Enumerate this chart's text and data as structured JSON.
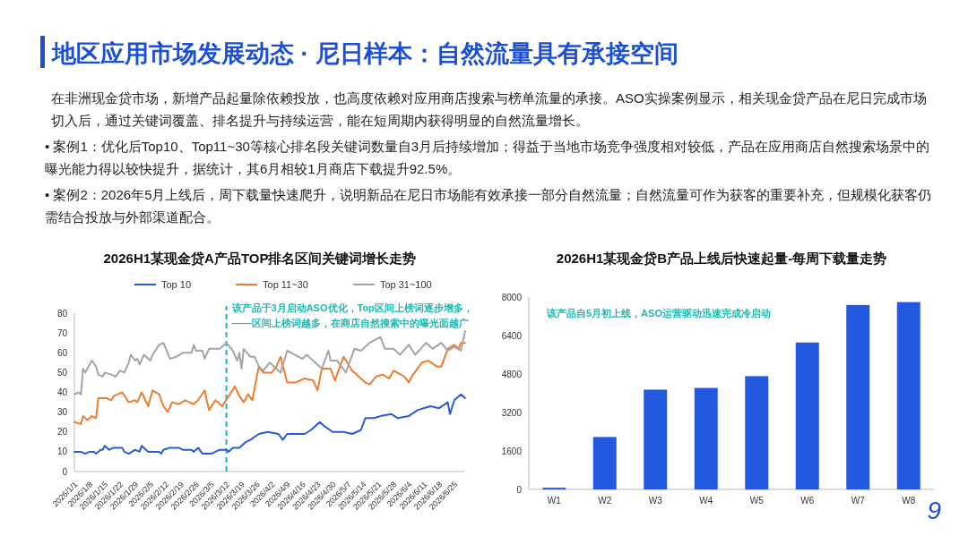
{
  "chart_data": [
    {
      "type": "other",
      "title": "地区应用市场发展动态 · 尼日样本：自然流量具有承接空间",
      "annotations": [
        "在非洲现金贷市场，新增产品起量除依赖投放，也高度依赖对应用商店搜索与榜单流量的承接。ASO实操案例显示，相关现金贷产品在尼日完成市场切入后，通过关键词覆盖、排名提升与持续运营，能在短周期内获得明显的自然流量增长。",
        "• 案例1：优化后Top10、Top11~30等核心排名段关键词数量自3月后持续增加；得益于当地市场竞争强度相对较低，产品在应用商店自然搜索场景中的曝光能力得以较快提升，据统计，其6月相较1月商店下载提升92.5%。",
        "• 案例2：2026年5月上线后，周下载量快速爬升，说明新品在尼日市场能有效承接一部分自然流量；自然流量可作为获客的重要补充，但规模化获客仍需结合投放与外部渠道配合。",
        "9"
      ]
    },
    {
      "type": "line",
      "title": "2026H1某现金贷A产品TOP排名区间关键词增长走势",
      "legend": "top",
      "xlim": [
        "2026-01-01",
        "2026-06-30"
      ],
      "ylim": [
        0,
        80
      ],
      "yticks": [
        0,
        10,
        20,
        30,
        40,
        50,
        60,
        70,
        80
      ],
      "xticks": [
        {
          "value": "2026-01-01",
          "label": "2026/1/1"
        },
        {
          "value": "2026-01-08",
          "label": "2026/1/8"
        },
        {
          "value": "2026-01-15",
          "label": "2026/1/15"
        },
        {
          "value": "2026-01-22",
          "label": "2026/1/22"
        },
        {
          "value": "2026-01-29",
          "label": "2026/1/29"
        },
        {
          "value": "2026-02-05",
          "label": "2026/2/5"
        },
        {
          "value": "2026-02-12",
          "label": "2026/2/12"
        },
        {
          "value": "2026-02-19",
          "label": "2026/2/19"
        },
        {
          "value": "2026-02-26",
          "label": "2026/2/26"
        },
        {
          "value": "2026-03-05",
          "label": "2026/3/5"
        },
        {
          "value": "2026-03-12",
          "label": "2026/3/12"
        },
        {
          "value": "2026-03-19",
          "label": "2026/3/19"
        },
        {
          "value": "2026-03-26",
          "label": "2026/3/26"
        },
        {
          "value": "2026-04-02",
          "label": "2026/4/2"
        },
        {
          "value": "2026-04-09",
          "label": "2026/4/9"
        },
        {
          "value": "2026-04-16",
          "label": "2026/4/16"
        },
        {
          "value": "2026-04-23",
          "label": "2026/4/23"
        },
        {
          "value": "2026-04-30",
          "label": "2026/4/30"
        },
        {
          "value": "2026-05-07",
          "label": "2026/5/7"
        },
        {
          "value": "2026-05-14",
          "label": "2026/5/14"
        },
        {
          "value": "2026-05-21",
          "label": "2026/5/21"
        },
        {
          "value": "2026-05-28",
          "label": "2026/5/28"
        },
        {
          "value": "2026-06-04",
          "label": "2026/6/4"
        },
        {
          "value": "2026-06-11",
          "label": "2026/6/11"
        },
        {
          "value": "2026-06-18",
          "label": "2026/6/18"
        },
        {
          "value": "2026-06-25",
          "label": "2026/6/25"
        }
      ],
      "ref_lines": [
        {
          "axis": "x",
          "value": "2026-03-12",
          "label": "该产品于3月启动ASO优化，Top区间上榜词逐步增多，——区间上榜词越多，在商店自然搜索中的曝光面越广",
          "color": "#1fb8b0",
          "line_style": "dashed"
        }
      ],
      "series": [
        {
          "name": "Top 10",
          "color": "#2a5bd7",
          "x": [
            "2026-01-01",
            "2026-01-04",
            "2026-01-06",
            "2026-01-08",
            "2026-01-10",
            "2026-01-11",
            "2026-01-13",
            "2026-01-14",
            "2026-01-15",
            "2026-01-17",
            "2026-01-19",
            "2026-01-23",
            "2026-01-24",
            "2026-01-26",
            "2026-01-29",
            "2026-01-31",
            "2026-02-01",
            "2026-02-03",
            "2026-02-04",
            "2026-02-09",
            "2026-02-10",
            "2026-02-11",
            "2026-02-14",
            "2026-02-18",
            "2026-02-20",
            "2026-02-24",
            "2026-02-25",
            "2026-02-27",
            "2026-03-01",
            "2026-03-05",
            "2026-03-07",
            "2026-03-09",
            "2026-03-12",
            "2026-03-13",
            "2026-03-15",
            "2026-03-18",
            "2026-03-21",
            "2026-03-23",
            "2026-03-27",
            "2026-03-31",
            "2026-04-05",
            "2026-04-07",
            "2026-04-09",
            "2026-04-17",
            "2026-04-20",
            "2026-04-24",
            "2026-04-26",
            "2026-04-30",
            "2026-05-05",
            "2026-05-09",
            "2026-05-13",
            "2026-05-15",
            "2026-05-19",
            "2026-05-22",
            "2026-05-27",
            "2026-05-30",
            "2026-06-04",
            "2026-06-08",
            "2026-06-14",
            "2026-06-18",
            "2026-06-22",
            "2026-06-23",
            "2026-06-25",
            "2026-06-28",
            "2026-06-30"
          ],
          "values": [
            10,
            10,
            9,
            10,
            10,
            9,
            11,
            11,
            13,
            11,
            12,
            12,
            10,
            9,
            11,
            10,
            13,
            11,
            10,
            10,
            9,
            11,
            12,
            12,
            11,
            11,
            10,
            12,
            9,
            9,
            10,
            11,
            11,
            10,
            12,
            12,
            15,
            16,
            19,
            20,
            19,
            16,
            19,
            19,
            21,
            25,
            23,
            20,
            20,
            19,
            21,
            27,
            27,
            28,
            29,
            27,
            28,
            31,
            33,
            32,
            35,
            29,
            36,
            39,
            37
          ]
        },
        {
          "name": "Top 11~30",
          "color": "#ed7d31",
          "x": [
            "2026-01-01",
            "2026-01-04",
            "2026-01-05",
            "2026-01-07",
            "2026-01-09",
            "2026-01-11",
            "2026-01-12",
            "2026-01-16",
            "2026-01-18",
            "2026-01-19",
            "2026-01-21",
            "2026-01-23",
            "2026-01-26",
            "2026-01-29",
            "2026-01-30",
            "2026-02-01",
            "2026-02-04",
            "2026-02-06",
            "2026-02-09",
            "2026-02-11",
            "2026-02-13",
            "2026-02-15",
            "2026-02-18",
            "2026-02-21",
            "2026-02-25",
            "2026-02-27",
            "2026-03-02",
            "2026-03-04",
            "2026-03-07",
            "2026-03-10",
            "2026-03-13",
            "2026-03-16",
            "2026-03-18",
            "2026-03-20",
            "2026-03-22",
            "2026-03-24",
            "2026-03-26",
            "2026-03-27",
            "2026-03-29",
            "2026-04-02",
            "2026-04-04",
            "2026-04-06",
            "2026-04-09",
            "2026-04-13",
            "2026-04-17",
            "2026-04-21",
            "2026-04-23",
            "2026-04-25",
            "2026-04-29",
            "2026-05-01",
            "2026-05-05",
            "2026-05-09",
            "2026-05-15",
            "2026-05-17",
            "2026-05-20",
            "2026-05-23",
            "2026-05-26",
            "2026-05-28",
            "2026-06-02",
            "2026-06-04",
            "2026-06-06",
            "2026-06-10",
            "2026-06-13",
            "2026-06-17",
            "2026-06-19",
            "2026-06-22",
            "2026-06-25",
            "2026-06-27",
            "2026-06-28",
            "2026-06-30"
          ],
          "values": [
            25,
            24,
            28,
            26,
            28,
            27,
            37,
            37,
            36,
            38,
            39,
            40,
            35,
            36,
            35,
            40,
            33,
            41,
            39,
            33,
            30,
            35,
            34,
            36,
            34,
            36,
            41,
            31,
            36,
            33,
            38,
            43,
            38,
            35,
            39,
            36,
            48,
            53,
            50,
            50,
            53,
            58,
            45,
            45,
            47,
            46,
            41,
            52,
            52,
            46,
            58,
            51,
            45,
            44,
            48,
            49,
            47,
            51,
            48,
            45,
            49,
            55,
            56,
            53,
            53,
            62,
            64,
            62,
            65,
            65
          ]
        },
        {
          "name": "Top 31~100",
          "color": "#a5a5a5",
          "x": [
            "2026-01-01",
            "2026-01-03",
            "2026-01-04",
            "2026-01-05",
            "2026-01-06",
            "2026-01-09",
            "2026-01-11",
            "2026-01-12",
            "2026-01-14",
            "2026-01-15",
            "2026-01-18",
            "2026-01-20",
            "2026-01-22",
            "2026-01-24",
            "2026-01-26",
            "2026-01-27",
            "2026-01-29",
            "2026-01-30",
            "2026-01-31",
            "2026-02-02",
            "2026-02-05",
            "2026-02-06",
            "2026-02-09",
            "2026-02-11",
            "2026-02-14",
            "2026-02-17",
            "2026-02-20",
            "2026-02-24",
            "2026-02-25",
            "2026-02-26",
            "2026-03-01",
            "2026-03-02",
            "2026-03-04",
            "2026-03-07",
            "2026-03-09",
            "2026-03-12",
            "2026-03-15",
            "2026-03-17",
            "2026-03-18",
            "2026-03-19",
            "2026-03-20",
            "2026-03-23",
            "2026-03-25",
            "2026-03-27",
            "2026-03-29",
            "2026-04-01",
            "2026-04-03",
            "2026-04-06",
            "2026-04-09",
            "2026-04-16",
            "2026-04-18",
            "2026-04-25",
            "2026-04-28",
            "2026-04-29",
            "2026-05-02",
            "2026-05-04",
            "2026-05-06",
            "2026-05-10",
            "2026-05-13",
            "2026-05-17",
            "2026-05-22",
            "2026-05-24",
            "2026-05-28",
            "2026-05-31",
            "2026-06-04",
            "2026-06-07",
            "2026-06-12",
            "2026-06-15",
            "2026-06-19",
            "2026-06-22",
            "2026-06-25",
            "2026-06-28",
            "2026-06-30"
          ],
          "values": [
            39,
            40,
            39,
            52,
            50,
            56,
            53,
            49,
            48,
            50,
            49,
            48,
            51,
            50,
            55,
            59,
            56,
            57,
            54,
            59,
            56,
            59,
            64,
            65,
            57,
            58,
            60,
            60,
            64,
            61,
            61,
            57,
            62,
            62,
            62,
            65,
            61,
            56,
            60,
            52,
            62,
            58,
            58,
            53,
            51,
            55,
            53,
            50,
            61,
            57,
            59,
            52,
            61,
            56,
            56,
            53,
            50,
            62,
            61,
            65,
            68,
            62,
            62,
            59,
            64,
            59,
            65,
            62,
            65,
            61,
            63,
            61,
            71
          ]
        }
      ]
    },
    {
      "type": "bar",
      "title": "2026H1某现金贷B产品上线后快速起量-每周下载量走势",
      "categories": [
        "W1",
        "W2",
        "W3",
        "W4",
        "W5",
        "W6",
        "W7",
        "W8"
      ],
      "values": [
        70,
        2180,
        4150,
        4220,
        4710,
        6110,
        7670,
        7790
      ],
      "color": "#2358e0",
      "ylim": [
        0,
        8000
      ],
      "yticks": [
        0,
        1600,
        3200,
        4800,
        6400,
        8000
      ],
      "annotations": [
        "该产品自5月初上线，ASO运营驱动迅速完成冷启动"
      ]
    }
  ]
}
